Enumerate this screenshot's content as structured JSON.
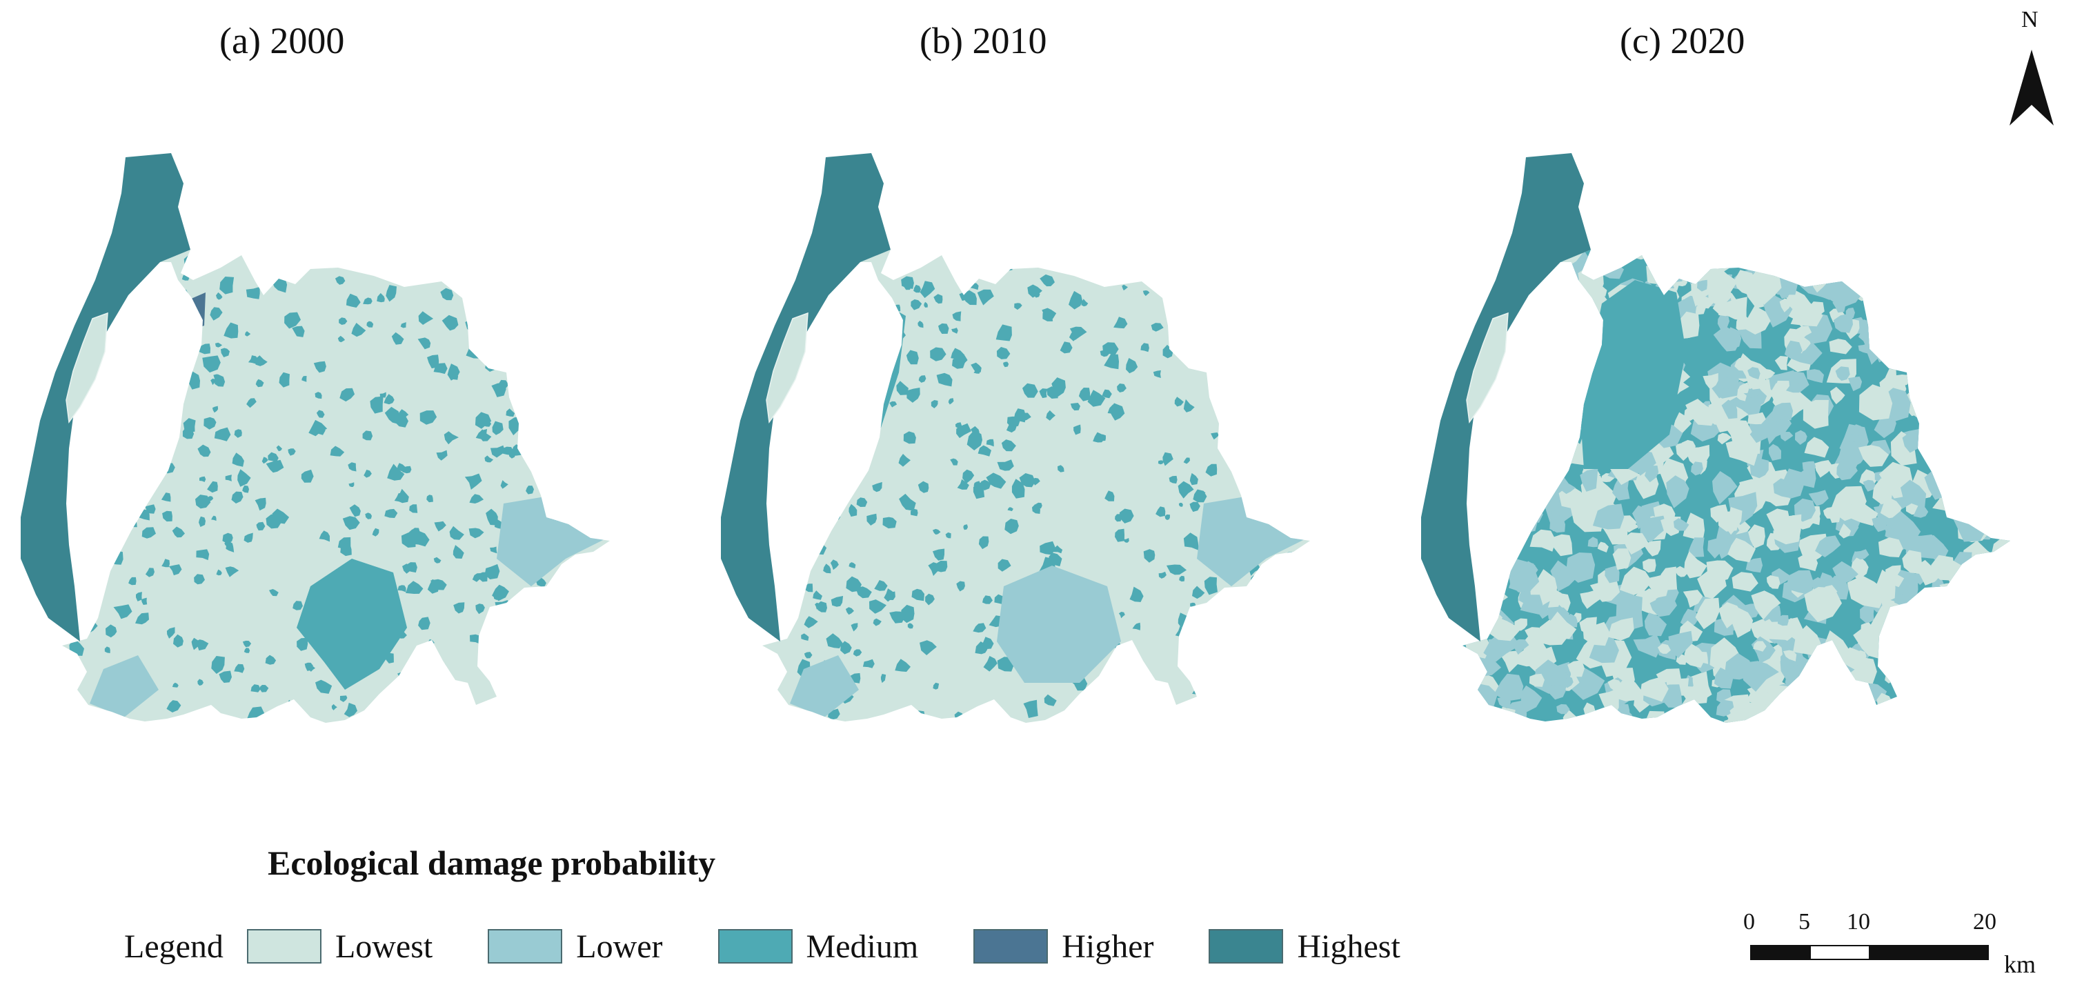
{
  "panels": [
    {
      "label": "(a)  2000"
    },
    {
      "label": "(b)  2010"
    },
    {
      "label": "(c)  2020"
    }
  ],
  "legend": {
    "heading": "Ecological damage probability",
    "word": "Legend",
    "classes": [
      {
        "label": "Lowest",
        "color": "#cfe5df"
      },
      {
        "label": "Lower",
        "color": "#99cbd3"
      },
      {
        "label": "Medium",
        "color": "#4eaab4"
      },
      {
        "label": "Higher",
        "color": "#4b7593"
      },
      {
        "label": "Highest",
        "color": "#3a8590"
      }
    ]
  },
  "north_arrow": {
    "label": "N"
  },
  "scale_bar": {
    "ticks": [
      "0",
      "5",
      "10",
      "20"
    ],
    "unit": "km"
  }
}
